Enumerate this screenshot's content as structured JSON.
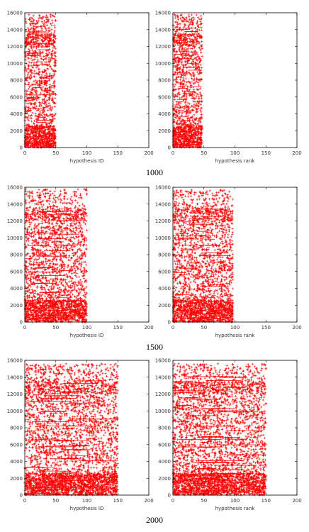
{
  "figure": {
    "rows": [
      {
        "caption": "1000",
        "panels": [
          {
            "xlabel": "hypothesis ID"
          },
          {
            "xlabel": "hypothesis rank"
          }
        ]
      },
      {
        "caption": "1500",
        "panels": [
          {
            "xlabel": "hypothesis ID"
          },
          {
            "xlabel": "hypothesis rank"
          }
        ]
      },
      {
        "caption": "2000",
        "panels": [
          {
            "xlabel": "hypothesis ID"
          },
          {
            "xlabel": "hypothesis rank"
          }
        ]
      }
    ],
    "marker_color": "#ff0000"
  },
  "chart_data": [
    {
      "type": "scatter",
      "row_caption": "1000",
      "xlabel": "hypothesis ID",
      "ylabel": "",
      "xlim": [
        0,
        200
      ],
      "ylim": [
        0,
        16000
      ],
      "xticks": [
        0,
        50,
        100,
        150,
        200
      ],
      "yticks": [
        0,
        2000,
        4000,
        6000,
        8000,
        10000,
        12000,
        14000,
        16000
      ],
      "series": [
        {
          "marker": "+",
          "color": "#ff0000",
          "x_range": [
            0,
            50
          ],
          "y_range": [
            0,
            15800
          ]
        }
      ]
    },
    {
      "type": "scatter",
      "row_caption": "1000",
      "xlabel": "hypothesis rank",
      "ylabel": "",
      "xlim": [
        0,
        200
      ],
      "ylim": [
        0,
        16000
      ],
      "xticks": [
        0,
        50,
        100,
        150,
        200
      ],
      "yticks": [
        0,
        2000,
        4000,
        6000,
        8000,
        10000,
        12000,
        14000,
        16000
      ],
      "series": [
        {
          "marker": "+",
          "color": "#ff0000",
          "x_range": [
            0,
            47
          ],
          "y_range": [
            0,
            15800
          ]
        }
      ]
    },
    {
      "type": "scatter",
      "row_caption": "1500",
      "xlabel": "hypothesis ID",
      "ylabel": "",
      "xlim": [
        0,
        200
      ],
      "ylim": [
        0,
        16000
      ],
      "xticks": [
        0,
        50,
        100,
        150,
        200
      ],
      "yticks": [
        0,
        2000,
        4000,
        6000,
        8000,
        10000,
        12000,
        14000,
        16000
      ],
      "series": [
        {
          "marker": "+",
          "color": "#ff0000",
          "x_range": [
            0,
            100
          ],
          "y_range": [
            0,
            15800
          ]
        }
      ]
    },
    {
      "type": "scatter",
      "row_caption": "1500",
      "xlabel": "hypothesis rank",
      "ylabel": "",
      "xlim": [
        0,
        200
      ],
      "ylim": [
        0,
        16000
      ],
      "xticks": [
        0,
        50,
        100,
        150,
        200
      ],
      "yticks": [
        0,
        2000,
        4000,
        6000,
        8000,
        10000,
        12000,
        14000,
        16000
      ],
      "series": [
        {
          "marker": "+",
          "color": "#ff0000",
          "x_range": [
            0,
            97
          ],
          "y_range": [
            0,
            15700
          ]
        }
      ]
    },
    {
      "type": "scatter",
      "row_caption": "2000",
      "xlabel": "hypothesis ID",
      "ylabel": "",
      "xlim": [
        0,
        200
      ],
      "ylim": [
        0,
        16000
      ],
      "xticks": [
        0,
        50,
        100,
        150,
        200
      ],
      "yticks": [
        0,
        2000,
        4000,
        6000,
        8000,
        10000,
        12000,
        14000,
        16000
      ],
      "series": [
        {
          "marker": "+",
          "color": "#ff0000",
          "x_range": [
            0,
            150
          ],
          "y_range": [
            0,
            15600
          ]
        }
      ]
    },
    {
      "type": "scatter",
      "row_caption": "2000",
      "xlabel": "hypothesis rank",
      "ylabel": "",
      "xlim": [
        0,
        200
      ],
      "ylim": [
        0,
        16000
      ],
      "xticks": [
        0,
        50,
        100,
        150,
        200
      ],
      "yticks": [
        0,
        2000,
        4000,
        6000,
        8000,
        10000,
        12000,
        14000,
        16000
      ],
      "series": [
        {
          "marker": "+",
          "color": "#ff0000",
          "x_range": [
            0,
            150
          ],
          "y_range": [
            0,
            15600
          ]
        }
      ]
    }
  ]
}
